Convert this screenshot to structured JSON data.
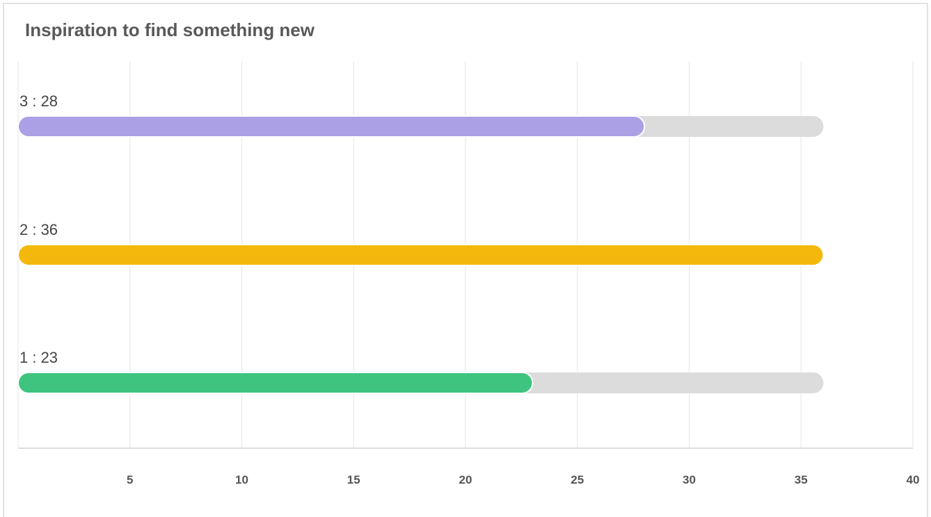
{
  "title": "Inspiration to find something new",
  "chart_data": {
    "type": "bar",
    "orientation": "horizontal",
    "title": "Inspiration to find something new",
    "categories": [
      "3 : 28",
      "2 : 36",
      "1 : 23"
    ],
    "values": [
      28,
      36,
      23
    ],
    "track_max": 36,
    "xlim": [
      0,
      40
    ],
    "xticks": [
      5,
      10,
      15,
      20,
      25,
      30,
      35,
      40
    ],
    "grid": true,
    "colors": [
      "#ab9fe5",
      "#f4b80c",
      "#3fc47f"
    ],
    "track_color": "#dcdcdc"
  }
}
